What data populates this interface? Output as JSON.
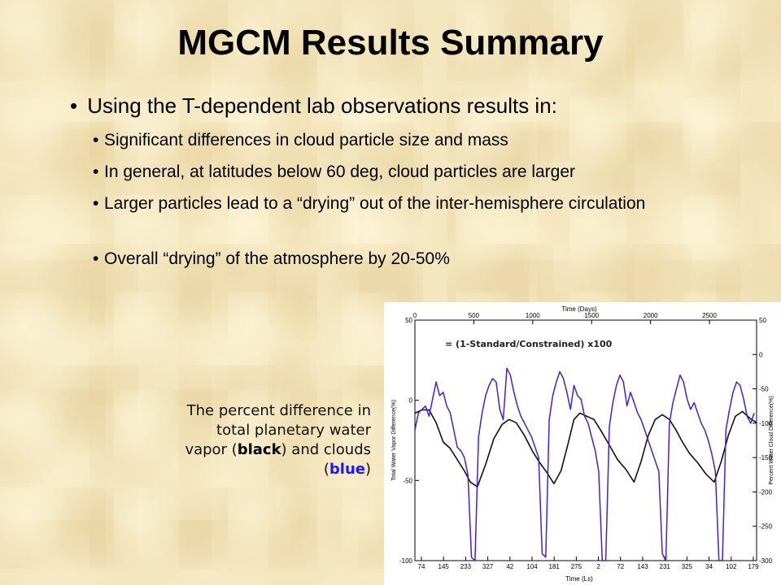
{
  "slide": {
    "title": "MGCM Results Summary",
    "main_bullet": "Using the T-dependent lab observations results in:",
    "sub_bullets": [
      "Significant differences in cloud particle size and mass",
      "In general, at latitudes below 60 deg, cloud particles are larger",
      "Larger particles lead to a “drying” out of the inter-hemisphere circulation",
      "Overall “drying” of the atmosphere by 20-50%"
    ],
    "caption": {
      "part1": "The percent difference in total planetary water vapor (",
      "black_word": "black",
      "part2": ") and clouds (",
      "blue_word": "blue",
      "part3": ")"
    }
  },
  "chart_data": {
    "type": "line",
    "top_xlabel": "Time (Days)",
    "top_xticks": [
      0,
      500,
      1000,
      1500,
      2000,
      2500
    ],
    "xlim_days": [
      0,
      2900
    ],
    "xlabel": "Time (Ls)",
    "bottom_xticks": [
      "74",
      "145",
      "233",
      "327",
      "42",
      "104",
      "181",
      "275",
      "2",
      "72",
      "143",
      "231",
      "325",
      "34",
      "102",
      "179"
    ],
    "ylabel_left": "Total Water Vapor Difference(%)",
    "ylim_left": [
      -100,
      50
    ],
    "yticks_left": [
      50,
      0,
      -50,
      -100
    ],
    "ylabel_right": "Percent Water Cloud Difference(%)",
    "ylim_right": [
      -300,
      50
    ],
    "yticks_right": [
      50,
      0,
      -50,
      -100,
      -150,
      -200,
      -250,
      -300
    ],
    "annotation": "= (1-Standard/Constrained) x100",
    "colors": {
      "vapor": "#111111",
      "clouds": "#4a1fc9"
    },
    "series": [
      {
        "axis": "left",
        "color": "#111111",
        "x": [
          0,
          60,
          120,
          180,
          240,
          300,
          360,
          420,
          470,
          530,
          600,
          670,
          740,
          800,
          860,
          930,
          1000,
          1060,
          1120,
          1180,
          1240,
          1300,
          1350,
          1400,
          1460,
          1520,
          1580,
          1650,
          1720,
          1790,
          1860,
          1920,
          1980,
          2040,
          2100,
          2160,
          2220,
          2270,
          2330,
          2400,
          2470,
          2540,
          2600,
          2660,
          2720,
          2780,
          2840,
          2900
        ],
        "values": [
          -8,
          -6,
          -6,
          -14,
          -26,
          -30,
          -37,
          -44,
          -51,
          -54,
          -40,
          -24,
          -15,
          -12,
          -14,
          -22,
          -32,
          -39,
          -45,
          -52,
          -44,
          -27,
          -12,
          -8,
          -10,
          -12,
          -19,
          -28,
          -37,
          -43,
          -51,
          -38,
          -22,
          -12,
          -9,
          -12,
          -19,
          -26,
          -33,
          -39,
          -46,
          -51,
          -38,
          -22,
          -10,
          -7,
          -11,
          -14
        ]
      },
      {
        "axis": "right",
        "color": "#4a1fc9",
        "x": [
          0,
          30,
          60,
          90,
          120,
          150,
          180,
          210,
          240,
          270,
          300,
          330,
          360,
          390,
          420,
          450,
          480,
          510,
          540,
          570,
          600,
          630,
          660,
          690,
          720,
          750,
          780,
          810,
          840,
          870,
          900,
          930,
          960,
          990,
          1020,
          1050,
          1080,
          1110,
          1140,
          1170,
          1200,
          1230,
          1260,
          1290,
          1320,
          1350,
          1380,
          1410,
          1440,
          1470,
          1500,
          1530,
          1560,
          1590,
          1620,
          1650,
          1680,
          1710,
          1740,
          1770,
          1800,
          1830,
          1860,
          1890,
          1920,
          1950,
          1980,
          2010,
          2040,
          2070,
          2100,
          2130,
          2160,
          2190,
          2220,
          2250,
          2280,
          2310,
          2340,
          2370,
          2400,
          2430,
          2460,
          2490,
          2520,
          2550,
          2580,
          2610,
          2640,
          2670,
          2700,
          2730,
          2760,
          2790,
          2820,
          2850,
          2880
        ],
        "values": [
          -110,
          -85,
          -80,
          -75,
          -90,
          -65,
          -40,
          -60,
          -55,
          -75,
          -85,
          -110,
          -135,
          -140,
          -150,
          -175,
          -295,
          -300,
          -120,
          -85,
          -60,
          -45,
          -35,
          -40,
          -80,
          -95,
          -20,
          -30,
          -55,
          -75,
          -90,
          -100,
          -110,
          -120,
          -135,
          -150,
          -290,
          -295,
          -95,
          -60,
          -40,
          -25,
          -35,
          -55,
          -80,
          -45,
          -60,
          -65,
          -90,
          -100,
          -120,
          -140,
          -170,
          -300,
          -300,
          -105,
          -70,
          -45,
          -30,
          -40,
          -75,
          -55,
          -70,
          -85,
          -95,
          -110,
          -125,
          -140,
          -155,
          -170,
          -290,
          -300,
          -100,
          -70,
          -50,
          -30,
          -40,
          -65,
          -80,
          -70,
          -85,
          -100,
          -110,
          -125,
          -145,
          -170,
          -300,
          -300,
          -110,
          -80,
          -55,
          -40,
          -45,
          -65,
          -90,
          -100,
          -85
        ]
      }
    ]
  }
}
